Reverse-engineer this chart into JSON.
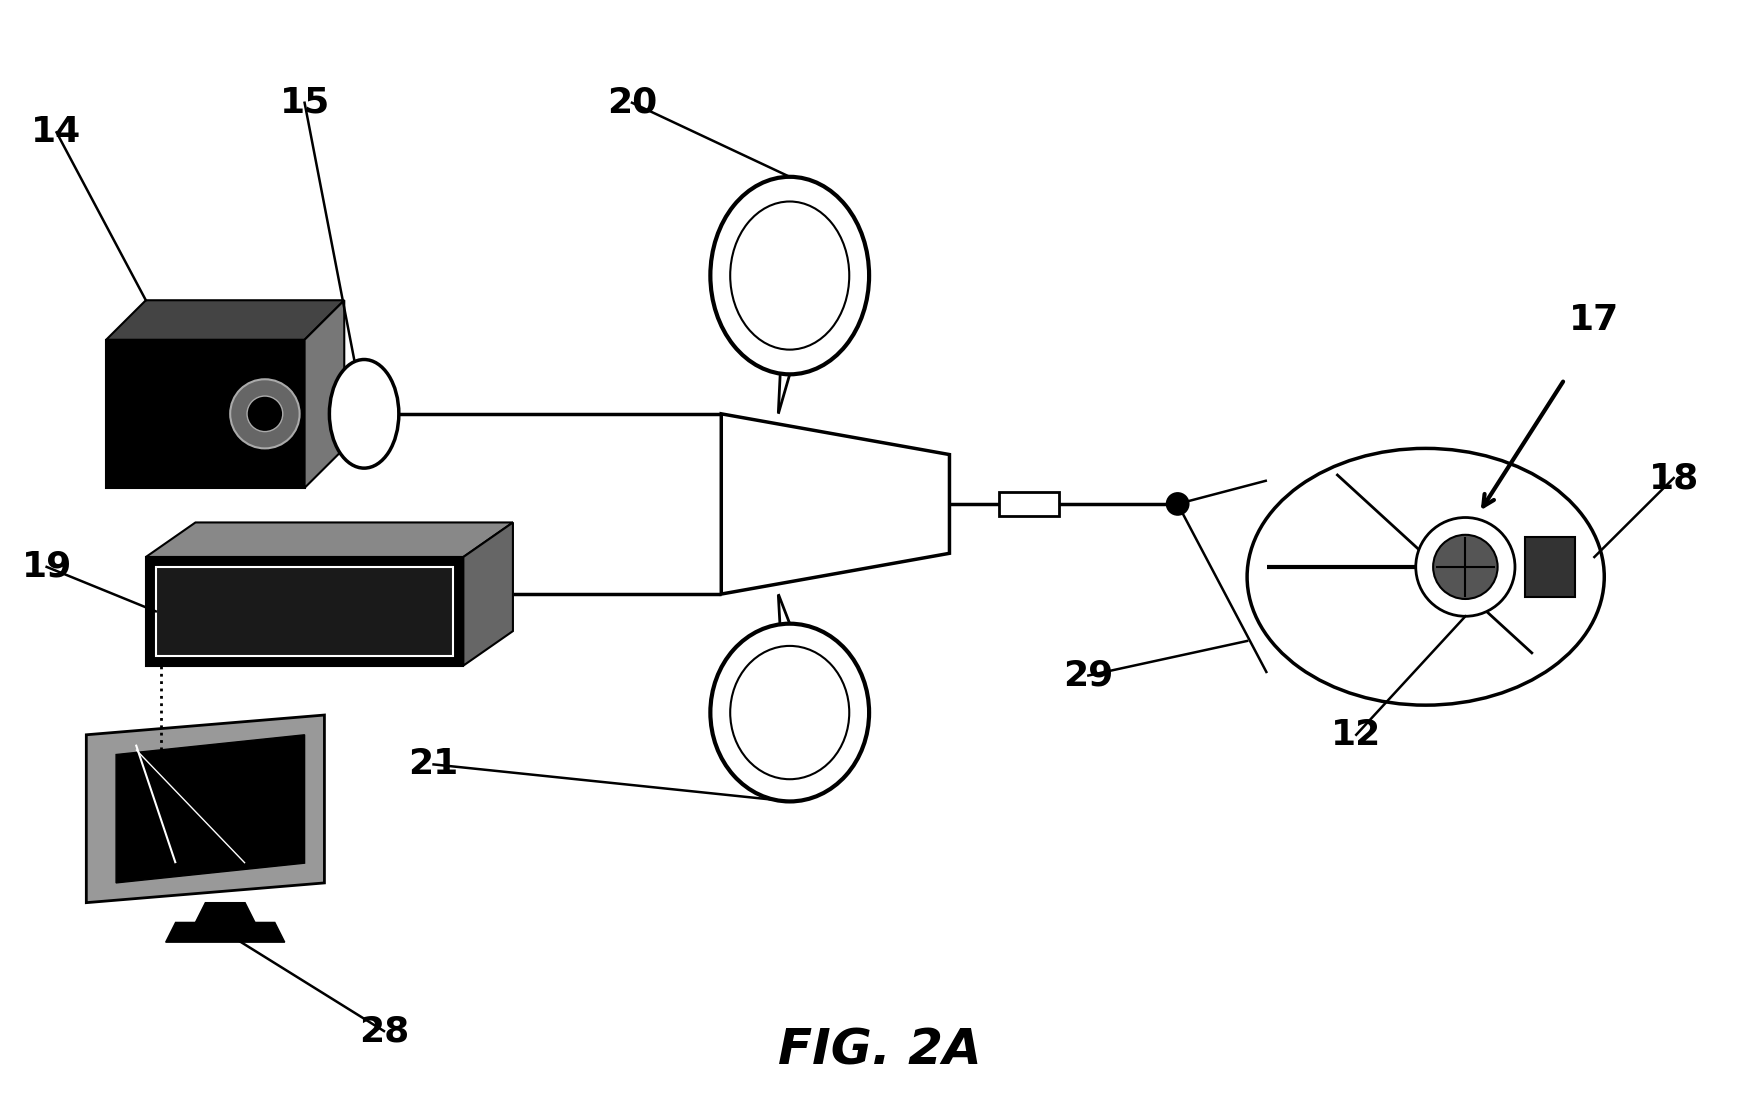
{
  "title": "FIG. 2A",
  "title_fontsize": 36,
  "title_fontweight": "bold",
  "background_color": "#ffffff",
  "line_color": "#000000",
  "label_fontsize": 26,
  "label_fontweight": "bold",
  "figsize": [
    17.64,
    11.17
  ],
  "dpi": 100
}
